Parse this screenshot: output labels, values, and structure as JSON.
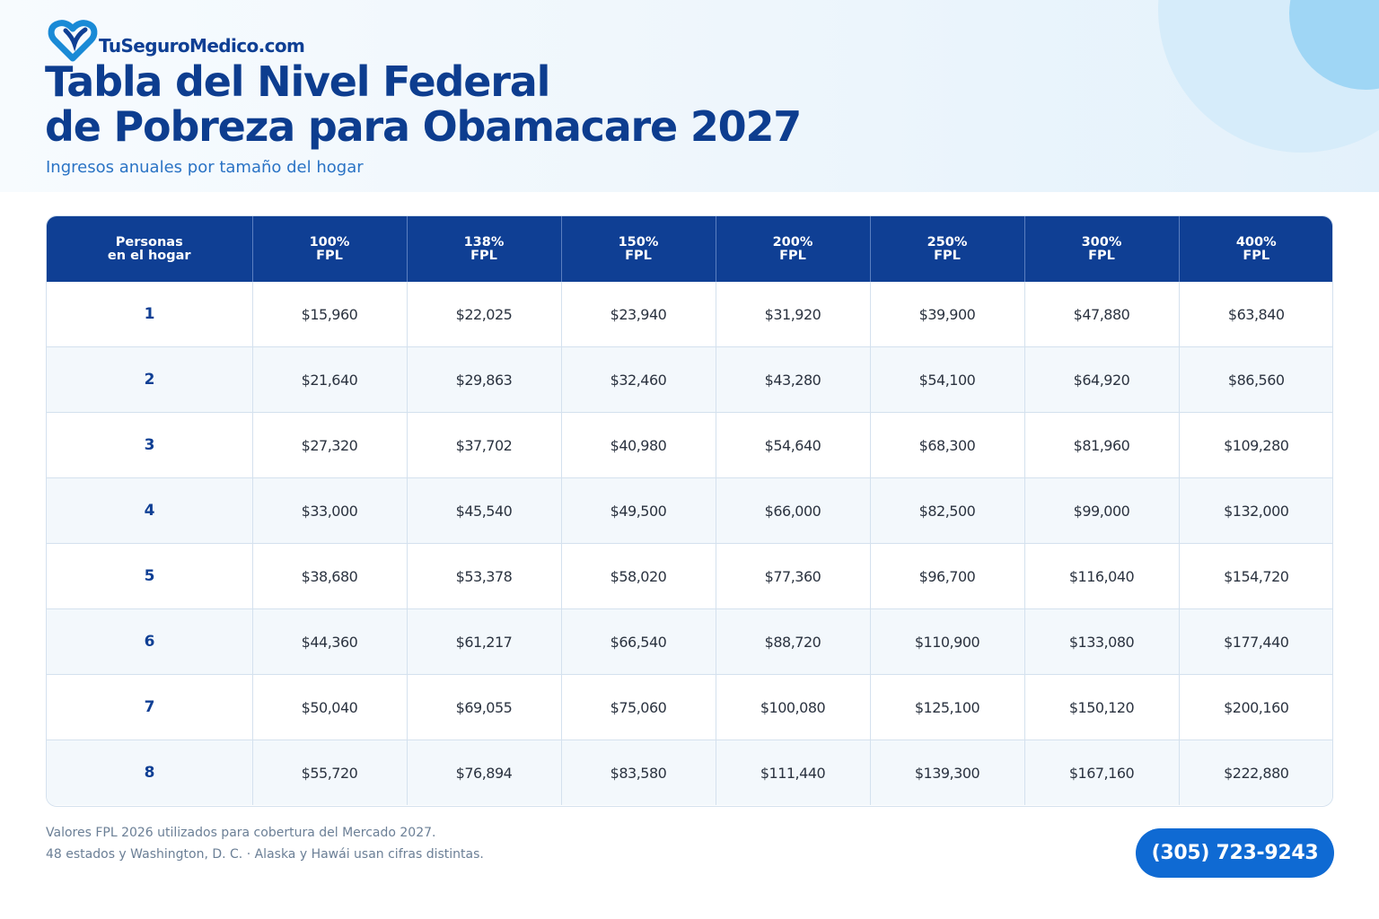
{
  "brand": {
    "name": "TuSeguroMedico.com",
    "logo_icon": "heart-logo-icon",
    "colors": {
      "primary": "#0f3f94",
      "accent": "#1a8ad6"
    }
  },
  "header": {
    "title_line1": "Tabla del Nivel Federal",
    "title_line2": "de Pobreza para Obamacare 2027",
    "subtitle": "Ingresos anuales por tamaño del hogar"
  },
  "table": {
    "headers": [
      {
        "line1": "Personas",
        "line2": "en el hogar"
      },
      {
        "line1": "100%",
        "line2": "FPL"
      },
      {
        "line1": "138%",
        "line2": "FPL"
      },
      {
        "line1": "150%",
        "line2": "FPL"
      },
      {
        "line1": "200%",
        "line2": "FPL"
      },
      {
        "line1": "250%",
        "line2": "FPL"
      },
      {
        "line1": "300%",
        "line2": "FPL"
      },
      {
        "line1": "400%",
        "line2": "FPL"
      }
    ],
    "rows": [
      [
        "1",
        "$15,960",
        "$22,025",
        "$23,940",
        "$31,920",
        "$39,900",
        "$47,880",
        "$63,840"
      ],
      [
        "2",
        "$21,640",
        "$29,863",
        "$32,460",
        "$43,280",
        "$54,100",
        "$64,920",
        "$86,560"
      ],
      [
        "3",
        "$27,320",
        "$37,702",
        "$40,980",
        "$54,640",
        "$68,300",
        "$81,960",
        "$109,280"
      ],
      [
        "4",
        "$33,000",
        "$45,540",
        "$49,500",
        "$66,000",
        "$82,500",
        "$99,000",
        "$132,000"
      ],
      [
        "5",
        "$38,680",
        "$53,378",
        "$58,020",
        "$77,360",
        "$96,700",
        "$116,040",
        "$154,720"
      ],
      [
        "6",
        "$44,360",
        "$61,217",
        "$66,540",
        "$88,720",
        "$110,900",
        "$133,080",
        "$177,440"
      ],
      [
        "7",
        "$50,040",
        "$69,055",
        "$75,060",
        "$100,080",
        "$125,100",
        "$150,120",
        "$200,160"
      ],
      [
        "8",
        "$55,720",
        "$76,894",
        "$83,580",
        "$111,440",
        "$139,300",
        "$167,160",
        "$222,880"
      ]
    ],
    "colors": {
      "header_bg": "#0f3f94",
      "stripe_bg": "#f3f8fc"
    }
  },
  "footer": {
    "note1": "Valores FPL 2026 utilizados para cobertura del Mercado 2027.",
    "note2": "48 estados y Washington, D. C. · Alaska y Hawái usan cifras distintas.",
    "phone": "(305) 723-9243",
    "phone_color": "#0f6ad3"
  }
}
